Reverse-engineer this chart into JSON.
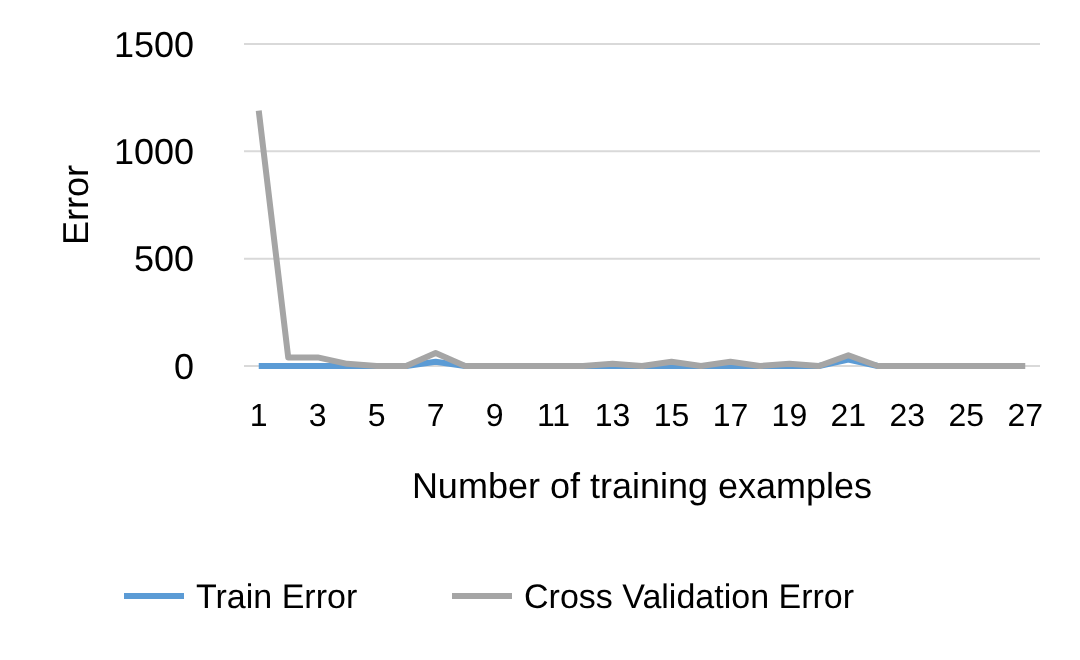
{
  "chart_data": {
    "type": "line",
    "xlabel": "Number of training examples",
    "ylabel": "Error",
    "x": [
      1,
      2,
      3,
      4,
      5,
      6,
      7,
      8,
      9,
      10,
      11,
      12,
      13,
      14,
      15,
      16,
      17,
      18,
      19,
      20,
      21,
      22,
      23,
      24,
      25,
      26,
      27
    ],
    "xlim": [
      0.5,
      27.5
    ],
    "xticks": [
      1,
      3,
      5,
      7,
      9,
      11,
      13,
      15,
      17,
      19,
      21,
      23,
      25,
      27
    ],
    "series": [
      {
        "name": "Train Error",
        "color": "#5b9bd5",
        "values": [
          0,
          0,
          0,
          0,
          0,
          0,
          20,
          0,
          0,
          0,
          0,
          0,
          0,
          0,
          0,
          0,
          0,
          0,
          0,
          0,
          30,
          0,
          0,
          null,
          null,
          null,
          null
        ]
      },
      {
        "name": "Cross Validation Error",
        "color": "#a5a5a5",
        "values": [
          1190,
          40,
          40,
          10,
          0,
          0,
          60,
          0,
          0,
          0,
          0,
          0,
          10,
          0,
          20,
          0,
          20,
          0,
          10,
          0,
          50,
          0,
          0,
          0,
          0,
          0,
          0
        ]
      }
    ],
    "ylim": [
      0,
      1500
    ],
    "yticks": [
      0,
      500,
      1000,
      1500
    ],
    "grid": "y",
    "legend": "bottom",
    "marker": "none",
    "line_style": "solid"
  }
}
